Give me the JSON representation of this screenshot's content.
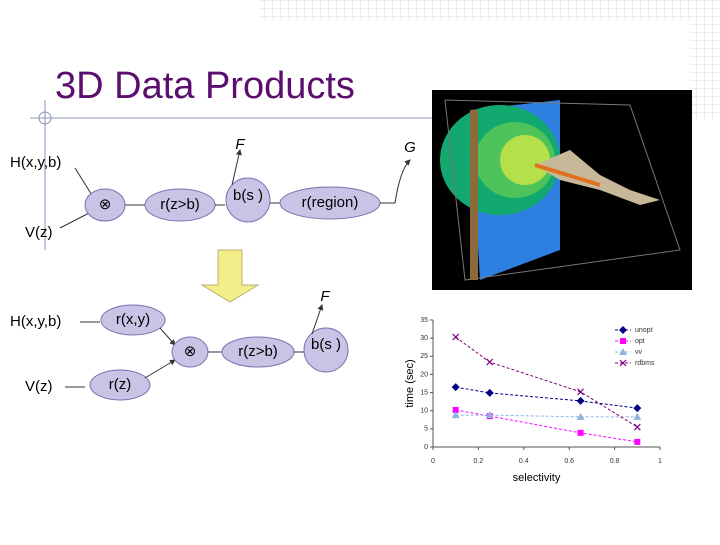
{
  "title": "3D Data Products",
  "top_diagram": {
    "inputs": [
      "H(x,y,b)",
      "V(z)"
    ],
    "nodes": [
      "⊗",
      "r(z>b)",
      "b(s )",
      "r(region)"
    ],
    "arrow_labels": [
      "F",
      "G"
    ]
  },
  "bottom_diagram": {
    "inputs": [
      "H(x,y,b)",
      "V(z)"
    ],
    "nodes": [
      "r(x,y)",
      "r(z)",
      "⊗",
      "r(z>b)",
      "b(s )"
    ],
    "arrow_labels": [
      "F"
    ]
  },
  "chart_data": {
    "type": "line",
    "xlabel": "selectivity",
    "ylabel": "time (sec)",
    "xlim": [
      0,
      1
    ],
    "xticks": [
      0,
      0.2,
      0.4,
      0.6,
      0.8,
      1
    ],
    "ylim": [
      0,
      35
    ],
    "yticks": [
      0,
      5,
      10,
      15,
      20,
      25,
      30,
      35
    ],
    "legend": "upper right",
    "x": [
      0.1,
      0.25,
      0.65,
      0.9
    ],
    "series": [
      {
        "name": "unopt",
        "color": "#000080",
        "marker": "diamond",
        "values": [
          16.5,
          14.9,
          12.7,
          10.7
        ]
      },
      {
        "name": "opt",
        "color": "#ff00ff",
        "marker": "square",
        "values": [
          10.2,
          8.5,
          3.9,
          1.4
        ]
      },
      {
        "name": "vv",
        "color": "#8fb4e0",
        "marker": "triangle",
        "values": [
          8.8,
          8.8,
          8.3,
          8.3
        ]
      },
      {
        "name": "rdbms",
        "color": "#800080",
        "marker": "x",
        "values": [
          30.3,
          23.4,
          15.2,
          5.5
        ]
      }
    ]
  }
}
